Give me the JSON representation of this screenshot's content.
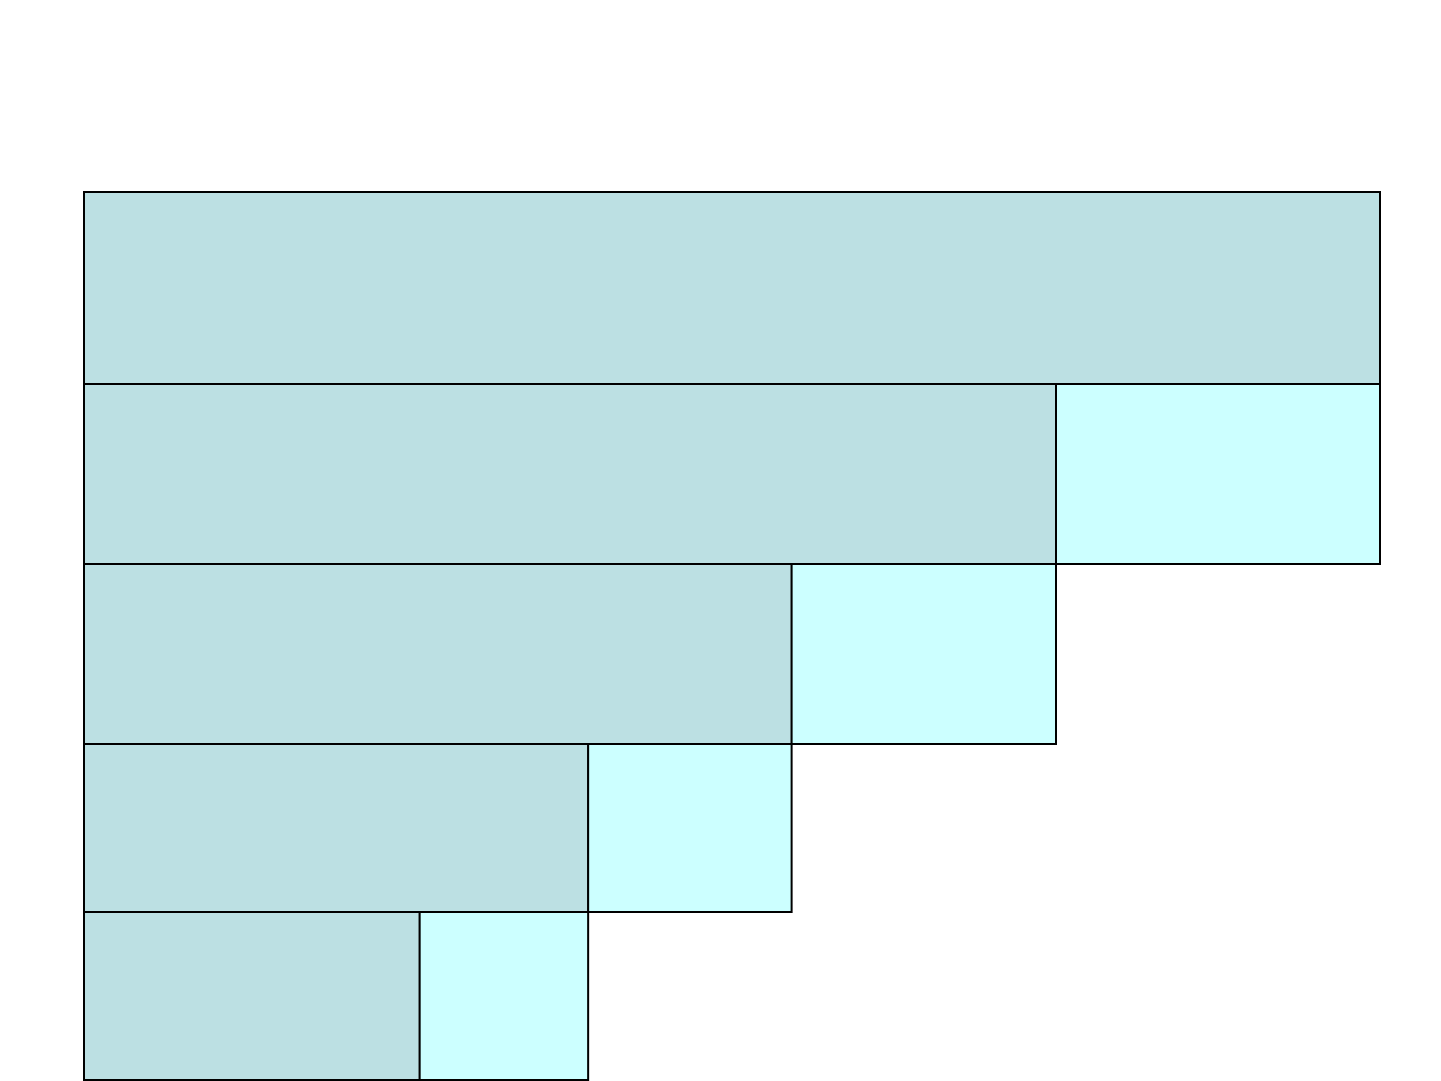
{
  "diagram": {
    "colors": {
      "primary": "#bce0e3",
      "secondary": "#ccffff",
      "border": "#000000",
      "background": "#ffffff"
    },
    "rows": [
      {
        "primary_share": 1.0,
        "secondary_share": 0.0
      },
      {
        "primary_share": 0.75,
        "secondary_share": 0.25
      },
      {
        "primary_share": 0.546,
        "secondary_share": 0.204
      },
      {
        "primary_share": 0.389,
        "secondary_share": 0.157
      },
      {
        "primary_share": 0.259,
        "secondary_share": 0.13
      }
    ]
  }
}
